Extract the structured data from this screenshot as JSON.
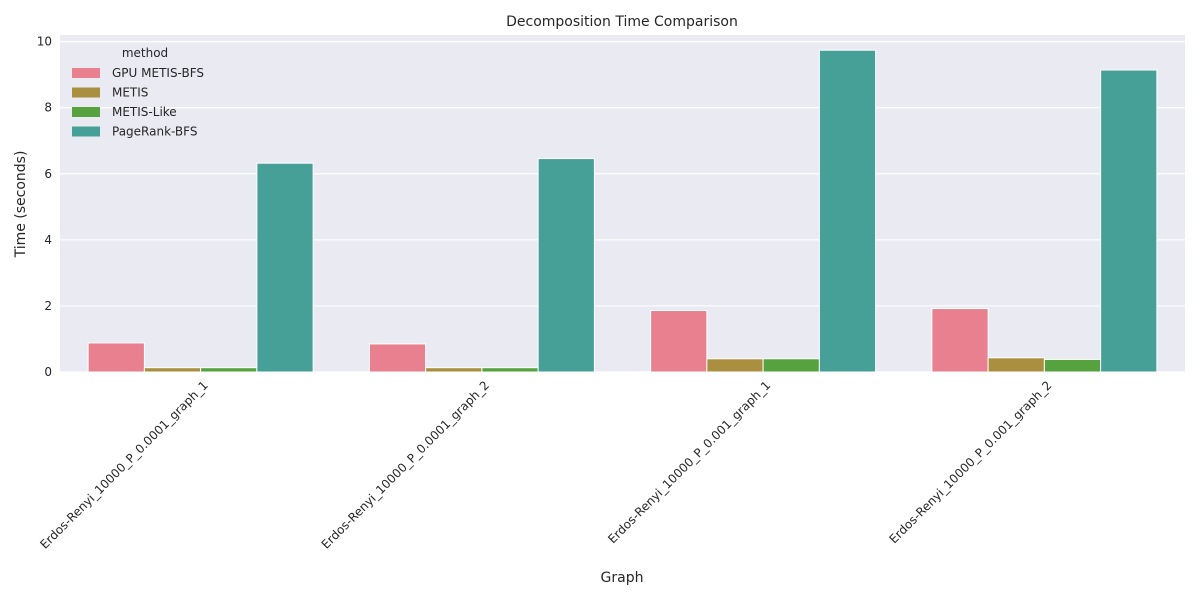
{
  "chart_data": {
    "type": "bar",
    "title": "Decomposition Time Comparison",
    "xlabel": "Graph",
    "ylabel": "Time (seconds)",
    "ylim": [
      0,
      10.2
    ],
    "yticks": [
      0,
      2,
      4,
      6,
      8,
      10
    ],
    "grid": true,
    "legend": {
      "title": "method",
      "placement": "top-left"
    },
    "categories": [
      "Erdos-Renyi_10000_P_0.0001_graph_1",
      "Erdos-Renyi_10000_P_0.0001_graph_2",
      "Erdos-Renyi_10000_P_0.001_graph_1",
      "Erdos-Renyi_10000_P_0.001_graph_2"
    ],
    "series": [
      {
        "name": "GPU METIS-BFS",
        "color": "#e8808f",
        "values": [
          0.88,
          0.85,
          1.86,
          1.92
        ]
      },
      {
        "name": "METIS",
        "color": "#a98f3f",
        "values": [
          0.13,
          0.13,
          0.4,
          0.43
        ]
      },
      {
        "name": "METIS-Like",
        "color": "#55a23e",
        "values": [
          0.13,
          0.13,
          0.4,
          0.38
        ]
      },
      {
        "name": "PageRank-BFS",
        "color": "#46a098",
        "values": [
          6.32,
          6.46,
          9.74,
          9.14
        ]
      }
    ]
  }
}
